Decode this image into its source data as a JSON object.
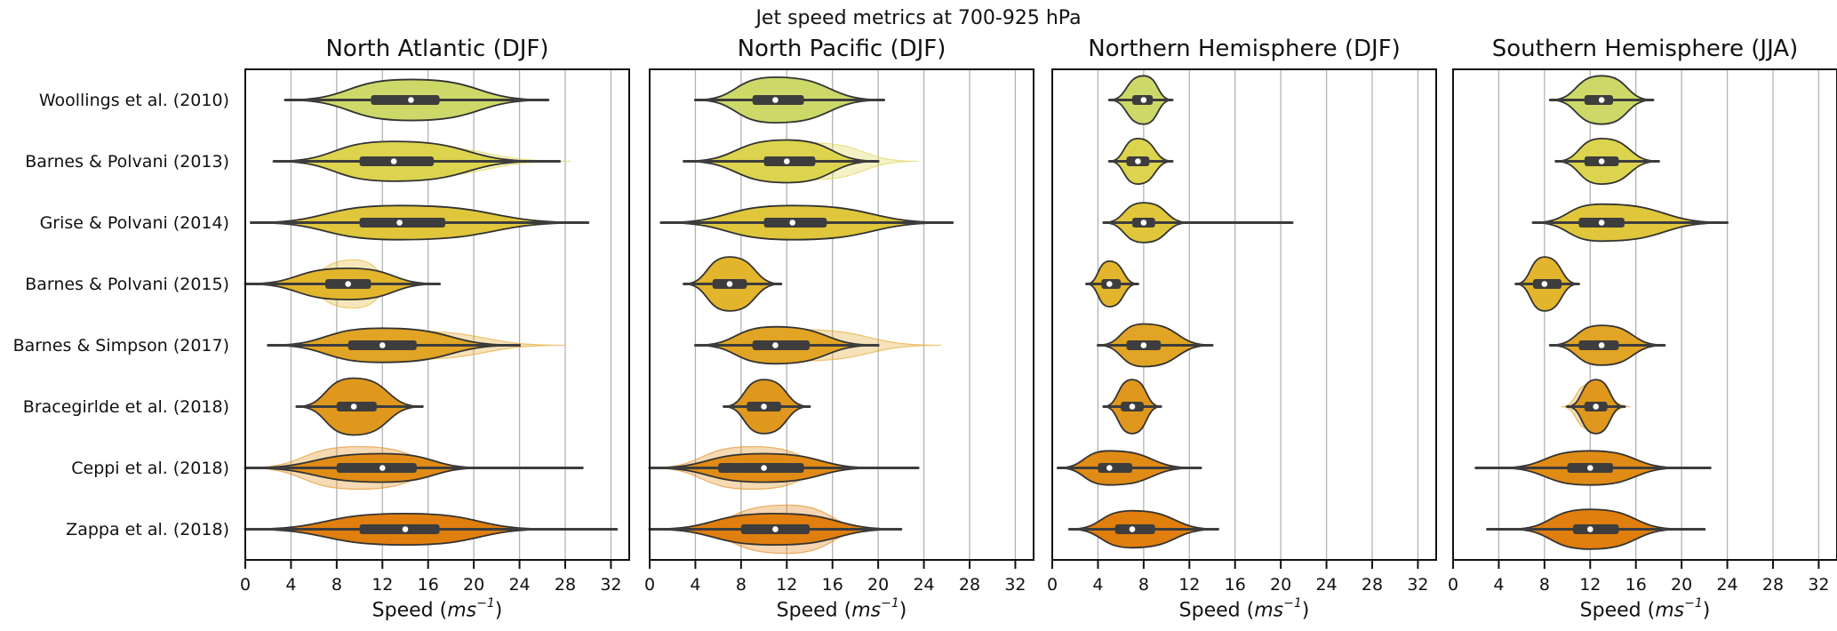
{
  "chart_data": {
    "type": "violin",
    "title": "Jet speed metrics at 700-925 hPa",
    "xlabel": {
      "prefix": "Speed (",
      "math": "ms",
      "sup": "−1",
      "suffix": ")"
    },
    "xticks": [
      0,
      4,
      8,
      12,
      16,
      20,
      24,
      28,
      32
    ],
    "xlim": [
      0,
      33.6
    ],
    "grid": true,
    "grid_color": "#b3b3b3",
    "spine_color": "#111111",
    "violin_stroke": "#333333",
    "box_color": "#3d3d3d",
    "median_dot_color": "#ffffff",
    "rows": [
      "Woollings et al. (2010)",
      "Barnes & Polvani (2013)",
      "Grise & Polvani (2014)",
      "Barnes & Polvani (2015)",
      "Barnes & Simpson (2017)",
      "Bracegirlde et al. (2018)",
      "Ceppi et al. (2018)",
      "Zappa et al. (2018)"
    ],
    "row_colors": [
      "#ccd968",
      "#dcd44e",
      "#dfc63b",
      "#e2b52c",
      "#e2a424",
      "#df981d",
      "#e08b15",
      "#e07e0e"
    ],
    "panels": [
      {
        "title": "North Atlantic (DJF)",
        "violins": [
          {
            "vmin": 3.5,
            "vpeak": 14.5,
            "vmax": 26.5,
            "h": 0.72,
            "wmin": 3.5,
            "wmax": 26.5,
            "q1": 11,
            "med": 14.5,
            "q3": 17
          },
          {
            "vmin": 2.5,
            "vpeak": 13,
            "vmax": 26,
            "h": 0.7,
            "wmin": 2.5,
            "wmax": 27.5,
            "q1": 10,
            "med": 13,
            "q3": 16.5,
            "overlay": {
              "vmin": 4,
              "vpeak": 14,
              "vmax": 28.5,
              "h": 0.55
            }
          },
          {
            "vmin": 0.5,
            "vpeak": 13.5,
            "vmax": 30,
            "h": 0.6,
            "wmin": 0.5,
            "wmax": 30,
            "q1": 10,
            "med": 13.5,
            "q3": 17.5
          },
          {
            "vmin": 0,
            "vpeak": 9,
            "vmax": 17,
            "h": 0.55,
            "wmin": 0,
            "wmax": 17,
            "q1": 7,
            "med": 9,
            "q3": 11,
            "overlay": {
              "vmin": 3.5,
              "vpeak": 9.5,
              "vmax": 14,
              "h": 0.85
            }
          },
          {
            "vmin": 2,
            "vpeak": 12,
            "vmax": 24,
            "h": 0.6,
            "wmin": 2,
            "wmax": 24,
            "q1": 9,
            "med": 12,
            "q3": 15,
            "overlay": {
              "vmin": 5,
              "vpeak": 14,
              "vmax": 28,
              "h": 0.5
            }
          },
          {
            "vmin": 4.5,
            "vpeak": 9.5,
            "vmax": 15.5,
            "h": 1.0,
            "wmin": 4.5,
            "wmax": 15.5,
            "q1": 8,
            "med": 9.5,
            "q3": 11.5
          },
          {
            "vmin": 0,
            "vpeak": 12,
            "vmax": 21,
            "h": 0.5,
            "wmin": 0,
            "wmax": 29.5,
            "q1": 8,
            "med": 12,
            "q3": 15,
            "overlay": {
              "vmin": 0,
              "vpeak": 10,
              "vmax": 20,
              "h": 0.75
            }
          },
          {
            "vmin": 0,
            "vpeak": 14,
            "vmax": 27,
            "h": 0.55,
            "wmin": 0,
            "wmax": 32.5,
            "q1": 10,
            "med": 14,
            "q3": 17
          }
        ]
      },
      {
        "title": "North Pacific (DJF)",
        "violins": [
          {
            "vmin": 4,
            "vpeak": 11,
            "vmax": 20.5,
            "h": 0.8,
            "wmin": 4,
            "wmax": 20.5,
            "q1": 9,
            "med": 11,
            "q3": 13.5
          },
          {
            "vmin": 3,
            "vpeak": 12,
            "vmax": 20,
            "h": 0.75,
            "wmin": 3,
            "wmax": 20,
            "q1": 10,
            "med": 12,
            "q3": 14.5,
            "overlay": {
              "vmin": 5,
              "vpeak": 14,
              "vmax": 23.5,
              "h": 0.65
            }
          },
          {
            "vmin": 1,
            "vpeak": 12.5,
            "vmax": 26.5,
            "h": 0.6,
            "wmin": 1,
            "wmax": 26.5,
            "q1": 10,
            "med": 12.5,
            "q3": 15.5
          },
          {
            "vmin": 3,
            "vpeak": 7,
            "vmax": 11.5,
            "h": 0.95,
            "wmin": 3,
            "wmax": 11.5,
            "q1": 5.5,
            "med": 7,
            "q3": 8.5
          },
          {
            "vmin": 4,
            "vpeak": 11,
            "vmax": 20,
            "h": 0.65,
            "wmin": 4,
            "wmax": 20,
            "q1": 9,
            "med": 11,
            "q3": 14,
            "overlay": {
              "vmin": 6,
              "vpeak": 13,
              "vmax": 25.5,
              "h": 0.55
            }
          },
          {
            "vmin": 6.5,
            "vpeak": 10,
            "vmax": 14,
            "h": 0.95,
            "wmin": 6.5,
            "wmax": 14,
            "q1": 8.5,
            "med": 10,
            "q3": 11.5
          },
          {
            "vmin": 0,
            "vpeak": 10,
            "vmax": 20,
            "h": 0.5,
            "wmin": 0,
            "wmax": 23.5,
            "q1": 6,
            "med": 10,
            "q3": 13.5,
            "overlay": {
              "vmin": 0,
              "vpeak": 9,
              "vmax": 18,
              "h": 0.75
            }
          },
          {
            "vmin": 0,
            "vpeak": 11,
            "vmax": 22,
            "h": 0.55,
            "wmin": 0,
            "wmax": 22,
            "q1": 8,
            "med": 11,
            "q3": 14,
            "overlay": {
              "vmin": 2,
              "vpeak": 12,
              "vmax": 20,
              "h": 0.85
            }
          }
        ]
      },
      {
        "title": "Northern Hemisphere (DJF)",
        "violins": [
          {
            "vmin": 5,
            "vpeak": 8,
            "vmax": 10.5,
            "h": 0.85,
            "wmin": 5,
            "wmax": 10.5,
            "q1": 7,
            "med": 8,
            "q3": 8.8
          },
          {
            "vmin": 5,
            "vpeak": 7.5,
            "vmax": 10.5,
            "h": 0.8,
            "wmin": 5,
            "wmax": 10.5,
            "q1": 6.5,
            "med": 7.5,
            "q3": 8.5
          },
          {
            "vmin": 4.5,
            "vpeak": 8,
            "vmax": 12,
            "h": 0.7,
            "wmin": 4.5,
            "wmax": 21,
            "q1": 7,
            "med": 8,
            "q3": 9
          },
          {
            "vmin": 3,
            "vpeak": 5,
            "vmax": 7.5,
            "h": 0.8,
            "wmin": 3,
            "wmax": 7.5,
            "q1": 4.3,
            "med": 5,
            "q3": 6
          },
          {
            "vmin": 4,
            "vpeak": 8,
            "vmax": 14,
            "h": 0.75,
            "wmin": 4,
            "wmax": 14,
            "q1": 6.5,
            "med": 8,
            "q3": 9.5
          },
          {
            "vmin": 4.5,
            "vpeak": 7,
            "vmax": 9.5,
            "h": 0.95,
            "wmin": 4.5,
            "wmax": 9.5,
            "q1": 6,
            "med": 7,
            "q3": 8
          },
          {
            "vmin": 0.5,
            "vpeak": 5,
            "vmax": 12.5,
            "h": 0.6,
            "wmin": 0.5,
            "wmax": 13,
            "q1": 4,
            "med": 5,
            "q3": 7
          },
          {
            "vmin": 1.5,
            "vpeak": 7,
            "vmax": 14.5,
            "h": 0.65,
            "wmin": 1.5,
            "wmax": 14.5,
            "q1": 5.5,
            "med": 7,
            "q3": 9
          }
        ]
      },
      {
        "title": "Southern Hemisphere (JJA)",
        "violins": [
          {
            "vmin": 8.5,
            "vpeak": 13,
            "vmax": 17.5,
            "h": 0.85,
            "wmin": 8.5,
            "wmax": 17.5,
            "q1": 11.5,
            "med": 13,
            "q3": 14
          },
          {
            "vmin": 9,
            "vpeak": 13,
            "vmax": 18,
            "h": 0.8,
            "wmin": 9,
            "wmax": 18,
            "q1": 11.5,
            "med": 13,
            "q3": 14.5
          },
          {
            "vmin": 7,
            "vpeak": 13,
            "vmax": 24,
            "h": 0.65,
            "wmin": 7,
            "wmax": 24,
            "q1": 11,
            "med": 13,
            "q3": 15
          },
          {
            "vmin": 5.5,
            "vpeak": 8,
            "vmax": 11,
            "h": 0.95,
            "wmin": 5.5,
            "wmax": 11,
            "q1": 7,
            "med": 8,
            "q3": 9.5
          },
          {
            "vmin": 8.5,
            "vpeak": 13,
            "vmax": 18.5,
            "h": 0.7,
            "wmin": 8.5,
            "wmax": 18.5,
            "q1": 11,
            "med": 13,
            "q3": 14.5
          },
          {
            "vmin": 10,
            "vpeak": 12.5,
            "vmax": 15,
            "h": 0.95,
            "wmin": 10,
            "wmax": 15,
            "q1": 11.5,
            "med": 12.5,
            "q3": 13.5,
            "overlay": {
              "vmin": 9.5,
              "vpeak": 12,
              "vmax": 15.5,
              "h": 0.8
            }
          },
          {
            "vmin": 4,
            "vpeak": 12,
            "vmax": 20,
            "h": 0.6,
            "wmin": 2,
            "wmax": 22.5,
            "q1": 10,
            "med": 12,
            "q3": 14
          },
          {
            "vmin": 5,
            "vpeak": 12,
            "vmax": 20,
            "h": 0.7,
            "wmin": 3,
            "wmax": 22,
            "q1": 10.5,
            "med": 12,
            "q3": 14.5
          }
        ]
      }
    ]
  }
}
